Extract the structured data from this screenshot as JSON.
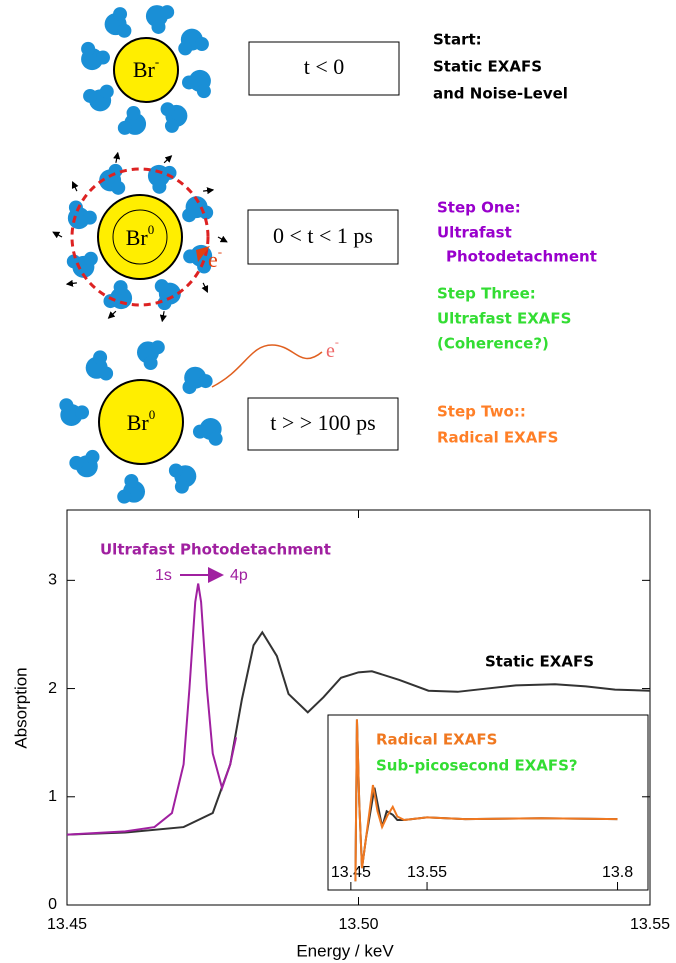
{
  "diagram": {
    "ions": [
      {
        "symbol": "Br",
        "charge": "-"
      },
      {
        "symbol": "Br",
        "charge": "0"
      },
      {
        "symbol": "Br",
        "charge": "0"
      }
    ],
    "electrons": [
      {
        "symbol": "e",
        "charge": "-"
      },
      {
        "symbol": "e",
        "charge": "-"
      }
    ],
    "time_boxes": [
      "t < 0",
      "0 <  t < 1 ps",
      "t > > 100 ps"
    ],
    "steps": [
      {
        "lines": [
          "Start:",
          "Static EXAFS",
          "and Noise-Level"
        ]
      },
      {
        "lines": [
          "Step One:",
          "Ultrafast",
          "Photodetachment"
        ]
      },
      {
        "lines": [
          "Step Three:",
          "Ultrafast EXAFS",
          "(Coherence?)"
        ]
      },
      {
        "lines": [
          "Step Two::",
          "Radical EXAFS"
        ]
      }
    ]
  },
  "chart_data": [
    {
      "type": "line",
      "x_label": "Energy / keV",
      "y_label": "Absorption",
      "xlim": [
        13.45,
        13.55
      ],
      "ylim": [
        0,
        3.65
      ],
      "xticks": [
        13.45,
        {
          "value": 13.5,
          "label": "13.50"
        },
        13.55
      ],
      "yticks": [
        0,
        1,
        2,
        3
      ],
      "annotations": [
        "Ultrafast Photodetachment",
        "1s",
        "4p",
        "Static EXAFS"
      ],
      "series": [
        {
          "name": "Static EXAFS",
          "color": "#333333",
          "x": [
            13.45,
            13.46,
            13.47,
            13.475,
            13.478,
            13.48,
            13.482,
            13.4835,
            13.486,
            13.488,
            13.4913,
            13.494,
            13.497,
            13.5,
            13.5023,
            13.507,
            13.512,
            13.517,
            13.522,
            13.527,
            13.5337,
            13.539,
            13.544,
            13.55
          ],
          "values": [
            0.65,
            0.67,
            0.72,
            0.85,
            1.3,
            1.9,
            2.4,
            2.52,
            2.3,
            1.95,
            1.78,
            1.92,
            2.1,
            2.15,
            2.16,
            2.08,
            1.98,
            1.97,
            2.0,
            2.03,
            2.04,
            2.02,
            1.99,
            1.98
          ]
        },
        {
          "name": "Ultrafast Photodetachment",
          "color": "#a020a0",
          "x": [
            13.45,
            13.46,
            13.465,
            13.468,
            13.47,
            13.471,
            13.472,
            13.4725,
            13.473,
            13.474,
            13.475,
            13.4766,
            13.478,
            13.479
          ],
          "values": [
            0.65,
            0.68,
            0.72,
            0.85,
            1.3,
            2.0,
            2.8,
            2.97,
            2.8,
            2.0,
            1.4,
            1.08,
            1.3,
            1.55
          ]
        }
      ]
    },
    {
      "type": "line",
      "xlim": [
        13.42,
        13.84
      ],
      "ylim": [
        0,
        2
      ],
      "xticks": [
        13.45,
        13.55,
        13.8
      ],
      "annotations": [
        "Radical EXAFS",
        "Sub-picosecond EXAFS?"
      ],
      "series": [
        {
          "name": "Static EXAFS",
          "color": "#333333",
          "x": [
            13.456,
            13.458,
            13.461,
            13.4646,
            13.47,
            13.481,
            13.487,
            13.491,
            13.497,
            13.505,
            13.511,
            13.52,
            13.55,
            13.6,
            13.7,
            13.8
          ],
          "values": [
            0.1,
            1.95,
            1.0,
            0.25,
            0.6,
            1.17,
            0.9,
            0.72,
            0.9,
            0.86,
            0.8,
            0.8,
            0.83,
            0.81,
            0.82,
            0.81
          ]
        },
        {
          "name": "Radical EXAFS",
          "color": "#f07820",
          "x": [
            13.456,
            13.458,
            13.461,
            13.4646,
            13.47,
            13.479,
            13.485,
            13.491,
            13.498,
            13.505,
            13.511,
            13.52,
            13.55,
            13.6,
            13.7,
            13.8
          ],
          "values": [
            0.1,
            1.95,
            1.0,
            0.25,
            0.6,
            1.2,
            0.9,
            0.72,
            0.85,
            0.95,
            0.84,
            0.8,
            0.83,
            0.81,
            0.82,
            0.81
          ]
        }
      ]
    }
  ]
}
